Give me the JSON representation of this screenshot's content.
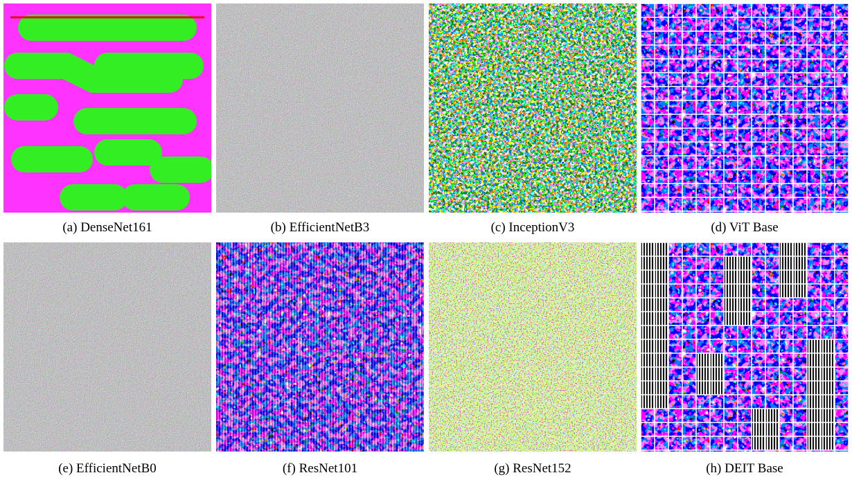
{
  "figure": {
    "panels": [
      {
        "caption": "(a) DenseNet161"
      },
      {
        "caption": "(b) EfficientNetB3"
      },
      {
        "caption": "(c) InceptionV3"
      },
      {
        "caption": "(d) ViT Base"
      },
      {
        "caption": "(e) EfficientNetB0"
      },
      {
        "caption": "(f) ResNet101"
      },
      {
        "caption": "(g) ResNet152"
      },
      {
        "caption": "(h) DEIT Base"
      }
    ]
  }
}
